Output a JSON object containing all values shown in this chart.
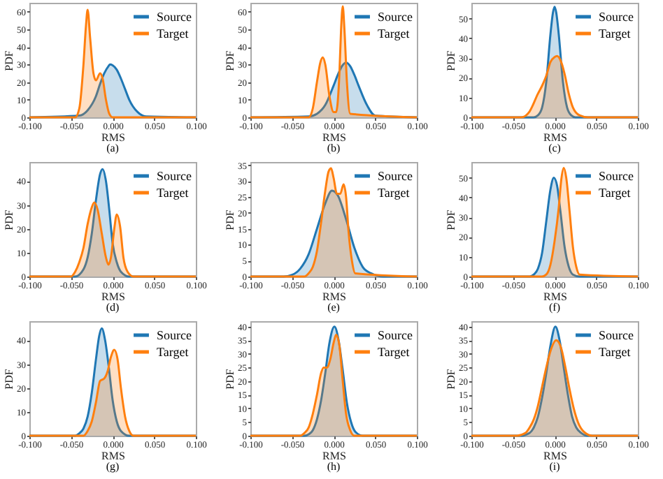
{
  "chart_data": [
    {
      "type": "area",
      "title": "(a)",
      "xlabel": "RMS",
      "ylabel": "PDF",
      "xlim": [
        -0.1,
        0.1
      ],
      "ylim": [
        0,
        65
      ],
      "yticks": [
        0,
        10,
        20,
        30,
        40,
        50,
        60
      ],
      "xticks": [
        {
          "value": -0.1,
          "label": "-0.100"
        },
        {
          "value": -0.05,
          "label": "-0.050"
        },
        {
          "value": 0,
          "label": "0.000"
        },
        {
          "value": 0.05,
          "label": "0.050"
        },
        {
          "value": 0.1,
          "label": "0.100"
        }
      ],
      "legend": "top right",
      "grid": false,
      "series": [
        {
          "name": "Source",
          "color": "#1f77b4",
          "x": [
            -0.1,
            -0.04,
            -0.03,
            -0.02,
            -0.015,
            -0.01,
            -0.005,
            -0.003,
            0,
            0.005,
            0.01,
            0.015,
            0.02,
            0.03,
            0.04,
            0.1
          ],
          "values": [
            0,
            1,
            4,
            12,
            19,
            25,
            29,
            30,
            29.5,
            27,
            22,
            16,
            10,
            3,
            0.5,
            0
          ]
        },
        {
          "name": "Target",
          "color": "#ff7f0e",
          "x": [
            -0.1,
            -0.045,
            -0.04,
            -0.035,
            -0.032,
            -0.03,
            -0.027,
            -0.023,
            -0.02,
            -0.015,
            -0.012,
            -0.008,
            -0.004,
            0,
            0.1
          ],
          "values": [
            0,
            0,
            5,
            30,
            52,
            61,
            45,
            25,
            21,
            25,
            22,
            10,
            2,
            0,
            0
          ]
        }
      ]
    },
    {
      "type": "area",
      "title": "(b)",
      "xlabel": "RMS",
      "ylabel": "PDF",
      "xlim": [
        -0.1,
        0.1
      ],
      "ylim": [
        0,
        65
      ],
      "yticks": [
        0,
        10,
        20,
        30,
        40,
        50,
        60
      ],
      "xticks": [
        {
          "value": -0.1,
          "label": "-0.100"
        },
        {
          "value": -0.05,
          "label": "-0.050"
        },
        {
          "value": 0,
          "label": "0.000"
        },
        {
          "value": 0.05,
          "label": "0.050"
        },
        {
          "value": 0.1,
          "label": "0.100"
        }
      ],
      "legend": "top right",
      "grid": false,
      "series": [
        {
          "name": "Source",
          "color": "#1f77b4",
          "x": [
            -0.1,
            -0.03,
            -0.02,
            -0.01,
            0,
            0.005,
            0.01,
            0.015,
            0.02,
            0.025,
            0.03,
            0.04,
            0.05,
            0.1
          ],
          "values": [
            0,
            0.5,
            2,
            7,
            18,
            24,
            29,
            31,
            29,
            24,
            18,
            7,
            1,
            0
          ]
        },
        {
          "name": "Target",
          "color": "#ff7f0e",
          "x": [
            -0.1,
            -0.03,
            -0.025,
            -0.02,
            -0.016,
            -0.013,
            -0.01,
            -0.005,
            0,
            0.003,
            0.007,
            0.009,
            0.011,
            0.013,
            0.016,
            0.02,
            0.1
          ],
          "values": [
            0,
            0,
            5,
            20,
            31,
            34,
            30,
            12,
            3,
            3,
            25,
            50,
            63,
            50,
            20,
            2,
            0
          ]
        }
      ]
    },
    {
      "type": "area",
      "title": "(c)",
      "xlabel": "RMS",
      "ylabel": "PDF",
      "xlim": [
        -0.1,
        0.1
      ],
      "ylim": [
        0,
        58
      ],
      "yticks": [
        0,
        10,
        20,
        30,
        40,
        50
      ],
      "xticks": [
        {
          "value": -0.1,
          "label": "-0.100"
        },
        {
          "value": -0.05,
          "label": "-0.050"
        },
        {
          "value": 0,
          "label": "0.000"
        },
        {
          "value": 0.05,
          "label": "0.050"
        },
        {
          "value": 0.1,
          "label": "0.100"
        }
      ],
      "legend": "top right",
      "grid": false,
      "series": [
        {
          "name": "Source",
          "color": "#1f77b4",
          "x": [
            -0.1,
            -0.025,
            -0.02,
            -0.015,
            -0.01,
            -0.005,
            -0.002,
            0,
            0.002,
            0.005,
            0.01,
            0.015,
            0.02,
            0.025,
            0.1
          ],
          "values": [
            0,
            0,
            1,
            5,
            18,
            42,
            53,
            56,
            53,
            42,
            18,
            5,
            1,
            0,
            0
          ]
        },
        {
          "name": "Target",
          "color": "#ff7f0e",
          "x": [
            -0.1,
            -0.04,
            -0.03,
            -0.02,
            -0.015,
            -0.01,
            -0.005,
            0,
            0.003,
            0.007,
            0.012,
            0.017,
            0.022,
            0.03,
            0.04,
            0.1
          ],
          "values": [
            0,
            0,
            3,
            12,
            16,
            21,
            28,
            30.5,
            31,
            29,
            22,
            12,
            5,
            1,
            0,
            0
          ]
        }
      ]
    },
    {
      "type": "area",
      "title": "(d)",
      "xlabel": "RMS",
      "ylabel": "PDF",
      "xlim": [
        -0.1,
        0.1
      ],
      "ylim": [
        0,
        48
      ],
      "yticks": [
        0,
        10,
        20,
        30,
        40
      ],
      "xticks": [
        {
          "value": -0.1,
          "label": "-0.100"
        },
        {
          "value": -0.05,
          "label": "-0.050"
        },
        {
          "value": 0,
          "label": "0.000"
        },
        {
          "value": 0.05,
          "label": "0.050"
        },
        {
          "value": 0.1,
          "label": "0.100"
        }
      ],
      "legend": "top right",
      "grid": false,
      "series": [
        {
          "name": "Source",
          "color": "#1f77b4",
          "x": [
            -0.1,
            -0.045,
            -0.035,
            -0.03,
            -0.025,
            -0.02,
            -0.015,
            -0.012,
            -0.008,
            -0.004,
            0,
            0.005,
            0.01,
            0.02,
            0.1
          ],
          "values": [
            0,
            0,
            3,
            8,
            18,
            32,
            43,
            45,
            40,
            28,
            14,
            6,
            2,
            0,
            0
          ]
        },
        {
          "name": "Target",
          "color": "#ff7f0e",
          "x": [
            -0.1,
            -0.05,
            -0.045,
            -0.04,
            -0.035,
            -0.03,
            -0.025,
            -0.022,
            -0.018,
            -0.013,
            -0.008,
            -0.005,
            -0.002,
            0.002,
            0.005,
            0.009,
            0.013,
            0.018,
            0.025,
            0.1
          ],
          "values": [
            0,
            0,
            2,
            6,
            12,
            22,
            29,
            31,
            28,
            18,
            8,
            5,
            8,
            20,
            26,
            21,
            8,
            2,
            0,
            0
          ]
        }
      ]
    },
    {
      "type": "area",
      "title": "(e)",
      "xlabel": "RMS",
      "ylabel": "PDF",
      "xlim": [
        -0.1,
        0.1
      ],
      "ylim": [
        0,
        36
      ],
      "yticks": [
        0,
        5,
        10,
        15,
        20,
        25,
        30,
        35
      ],
      "xticks": [
        {
          "value": -0.1,
          "label": "-0.100"
        },
        {
          "value": -0.05,
          "label": "-0.050"
        },
        {
          "value": 0,
          "label": "0.000"
        },
        {
          "value": 0.05,
          "label": "0.050"
        },
        {
          "value": 0.1,
          "label": "0.100"
        }
      ],
      "legend": "top right",
      "grid": false,
      "series": [
        {
          "name": "Source",
          "color": "#1f77b4",
          "x": [
            -0.1,
            -0.06,
            -0.05,
            -0.04,
            -0.03,
            -0.02,
            -0.01,
            -0.002,
            0.005,
            0.015,
            0.025,
            0.035,
            0.045,
            0.06,
            0.1
          ],
          "values": [
            0,
            0,
            0.5,
            2.5,
            7,
            15,
            23,
            27,
            25.5,
            18,
            9,
            3,
            1,
            0,
            0
          ]
        },
        {
          "name": "Target",
          "color": "#ff7f0e",
          "x": [
            -0.1,
            -0.035,
            -0.03,
            -0.025,
            -0.02,
            -0.015,
            -0.01,
            -0.006,
            -0.003,
            0,
            0.004,
            0.008,
            0.012,
            0.015,
            0.018,
            0.022,
            0.026,
            0.1
          ],
          "values": [
            0,
            0,
            1,
            3,
            8,
            17,
            27,
            33,
            34,
            31,
            26,
            26,
            29,
            25,
            14,
            5,
            1,
            0
          ]
        }
      ]
    },
    {
      "type": "area",
      "title": "(f)",
      "xlabel": "RMS",
      "ylabel": "PDF",
      "xlim": [
        -0.1,
        0.1
      ],
      "ylim": [
        0,
        58
      ],
      "yticks": [
        0,
        10,
        20,
        30,
        40,
        50
      ],
      "xticks": [
        {
          "value": -0.1,
          "label": "-0.100"
        },
        {
          "value": -0.05,
          "label": "-0.050"
        },
        {
          "value": 0,
          "label": "0.000"
        },
        {
          "value": 0.05,
          "label": "0.050"
        },
        {
          "value": 0.1,
          "label": "0.100"
        }
      ],
      "legend": "top right",
      "grid": false,
      "series": [
        {
          "name": "Source",
          "color": "#1f77b4",
          "x": [
            -0.1,
            -0.03,
            -0.025,
            -0.02,
            -0.015,
            -0.01,
            -0.005,
            -0.001,
            0.003,
            0.007,
            0.012,
            0.017,
            0.022,
            0.03,
            0.1
          ],
          "values": [
            0,
            0,
            1,
            4,
            12,
            28,
            44,
            50,
            46,
            33,
            15,
            5,
            1,
            0,
            0
          ]
        },
        {
          "name": "Target",
          "color": "#ff7f0e",
          "x": [
            -0.1,
            -0.015,
            -0.01,
            -0.005,
            0,
            0.005,
            0.008,
            0.011,
            0.014,
            0.018,
            0.022,
            0.026,
            0.03,
            0.1
          ],
          "values": [
            0,
            0,
            1,
            6,
            18,
            35,
            49,
            55,
            50,
            33,
            15,
            5,
            1,
            0
          ]
        }
      ]
    },
    {
      "type": "area",
      "title": "(g)",
      "xlabel": "RMS",
      "ylabel": "PDF",
      "xlim": [
        -0.1,
        0.1
      ],
      "ylim": [
        0,
        48
      ],
      "yticks": [
        0,
        10,
        20,
        30,
        40
      ],
      "xticks": [
        {
          "value": -0.1,
          "label": "-0.100"
        },
        {
          "value": -0.05,
          "label": "-0.050"
        },
        {
          "value": 0,
          "label": "0.000"
        },
        {
          "value": 0.05,
          "label": "0.050"
        },
        {
          "value": 0.1,
          "label": "0.100"
        }
      ],
      "legend": "top right",
      "grid": false,
      "series": [
        {
          "name": "Source",
          "color": "#1f77b4",
          "x": [
            -0.1,
            -0.045,
            -0.04,
            -0.035,
            -0.03,
            -0.025,
            -0.02,
            -0.016,
            -0.013,
            -0.009,
            -0.005,
            0,
            0.005,
            0.01,
            0.02,
            0.1
          ],
          "values": [
            0,
            0,
            1,
            3,
            8,
            18,
            32,
            42,
            45,
            40,
            30,
            15,
            6,
            2,
            0,
            0
          ]
        },
        {
          "name": "Target",
          "color": "#ff7f0e",
          "x": [
            -0.1,
            -0.035,
            -0.03,
            -0.025,
            -0.02,
            -0.015,
            -0.01,
            -0.006,
            -0.002,
            0.002,
            0.006,
            0.01,
            0.015,
            0.02,
            0.025,
            0.1
          ],
          "values": [
            0,
            0,
            2,
            6,
            14,
            23,
            24,
            27,
            33,
            36,
            32,
            20,
            8,
            2,
            0,
            0
          ]
        }
      ]
    },
    {
      "type": "area",
      "title": "(h)",
      "xlabel": "RMS",
      "ylabel": "PDF",
      "xlim": [
        -0.1,
        0.1
      ],
      "ylim": [
        0,
        42
      ],
      "yticks": [
        0,
        5,
        10,
        15,
        20,
        25,
        30,
        35,
        40
      ],
      "xticks": [
        {
          "value": -0.1,
          "label": "-0.100"
        },
        {
          "value": -0.05,
          "label": "-0.050"
        },
        {
          "value": 0,
          "label": "0.000"
        },
        {
          "value": 0.05,
          "label": "0.050"
        },
        {
          "value": 0.1,
          "label": "0.100"
        }
      ],
      "legend": "top right",
      "grid": false,
      "series": [
        {
          "name": "Source",
          "color": "#1f77b4",
          "x": [
            -0.1,
            -0.035,
            -0.03,
            -0.025,
            -0.02,
            -0.015,
            -0.01,
            -0.005,
            0.001,
            0.006,
            0.011,
            0.016,
            0.021,
            0.026,
            0.035,
            0.1
          ],
          "values": [
            0,
            0,
            0.5,
            2,
            6,
            13,
            23,
            34,
            40,
            35,
            24,
            12,
            5,
            1.5,
            0,
            0
          ]
        },
        {
          "name": "Target",
          "color": "#ff7f0e",
          "x": [
            -0.1,
            -0.04,
            -0.035,
            -0.03,
            -0.025,
            -0.02,
            -0.015,
            -0.012,
            -0.008,
            -0.004,
            0,
            0.003,
            0.007,
            0.011,
            0.015,
            0.02,
            0.025,
            0.1
          ],
          "values": [
            0,
            0,
            1,
            3,
            8,
            15,
            23,
            25,
            25,
            28,
            34,
            37,
            33,
            20,
            8,
            2,
            0,
            0
          ]
        }
      ]
    },
    {
      "type": "area",
      "title": "(i)",
      "xlabel": "RMS",
      "ylabel": "PDF",
      "xlim": [
        -0.1,
        0.1
      ],
      "ylim": [
        0,
        42
      ],
      "yticks": [
        0,
        5,
        10,
        15,
        20,
        25,
        30,
        35,
        40
      ],
      "xticks": [
        {
          "value": -0.1,
          "label": "-0.100"
        },
        {
          "value": -0.05,
          "label": "-0.050"
        },
        {
          "value": 0,
          "label": "0.000"
        },
        {
          "value": 0.05,
          "label": "0.050"
        },
        {
          "value": 0.1,
          "label": "0.100"
        }
      ],
      "legend": "top right",
      "grid": false,
      "series": [
        {
          "name": "Source",
          "color": "#1f77b4",
          "x": [
            -0.1,
            -0.04,
            -0.03,
            -0.025,
            -0.02,
            -0.015,
            -0.01,
            -0.005,
            0.001,
            0.006,
            0.011,
            0.016,
            0.021,
            0.026,
            0.032,
            0.04,
            0.1
          ],
          "values": [
            0,
            0,
            1,
            3,
            7,
            14,
            23,
            33,
            40,
            35,
            25,
            15,
            7,
            3,
            1,
            0,
            0
          ]
        },
        {
          "name": "Target",
          "color": "#ff7f0e",
          "x": [
            -0.1,
            -0.045,
            -0.035,
            -0.03,
            -0.025,
            -0.02,
            -0.015,
            -0.01,
            -0.005,
            0.002,
            0.008,
            0.013,
            0.018,
            0.023,
            0.028,
            0.035,
            0.045,
            0.1
          ],
          "values": [
            0,
            0,
            1,
            3,
            6,
            11,
            18,
            25,
            31,
            35,
            32,
            25,
            17,
            10,
            5,
            1.5,
            0,
            0
          ]
        }
      ]
    }
  ]
}
